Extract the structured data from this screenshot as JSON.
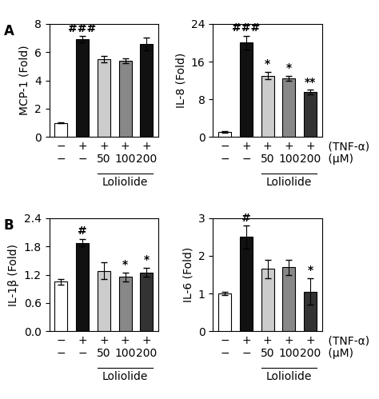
{
  "chart_data": [
    {
      "type": "bar",
      "panel_label": "A",
      "ylabel": "MCP-1 (Fold)",
      "categories": [
        "−\n−",
        "+\n−",
        "+\n50",
        "+\n100",
        "+\n200"
      ],
      "row_labels": [],
      "group_label": {
        "text": "Loliolide",
        "from": 2,
        "to": 4
      },
      "values": [
        1.0,
        6.9,
        5.5,
        5.4,
        6.6
      ],
      "errors": [
        0.05,
        0.22,
        0.25,
        0.18,
        0.45
      ],
      "colors": [
        "#ffffff",
        "#111111",
        "#cccccc",
        "#888888",
        "#111111"
      ],
      "ylim": [
        0,
        8
      ],
      "yticks": [
        0,
        2,
        4,
        6,
        8
      ],
      "annotations": [
        {
          "index": 1,
          "text": "###"
        }
      ]
    },
    {
      "type": "bar",
      "ylabel": "IL-8 (Fold)",
      "categories": [
        "−\n−",
        "+\n−",
        "+\n50",
        "+\n100",
        "+\n200"
      ],
      "row_labels": [
        " (TNF-α)",
        " (μM)"
      ],
      "group_label": {
        "text": "Loliolide",
        "from": 2,
        "to": 4
      },
      "values": [
        1.0,
        20.0,
        13.0,
        12.5,
        9.5
      ],
      "errors": [
        0.2,
        1.5,
        0.8,
        0.5,
        0.5
      ],
      "colors": [
        "#ffffff",
        "#111111",
        "#cccccc",
        "#888888",
        "#333333"
      ],
      "ylim": [
        0,
        24
      ],
      "yticks": [
        0,
        8,
        16,
        24
      ],
      "annotations": [
        {
          "index": 1,
          "text": "###"
        },
        {
          "index": 2,
          "text": "*"
        },
        {
          "index": 3,
          "text": "*"
        },
        {
          "index": 4,
          "text": "**"
        }
      ]
    },
    {
      "type": "bar",
      "panel_label": "B",
      "ylabel": "IL-1β (Fold)",
      "categories": [
        "−\n−",
        "+\n−",
        "+\n50",
        "+\n100",
        "+\n200"
      ],
      "row_labels": [],
      "group_label": {
        "text": "Loliolide",
        "from": 2,
        "to": 4
      },
      "values": [
        1.05,
        1.88,
        1.28,
        1.15,
        1.25
      ],
      "errors": [
        0.06,
        0.08,
        0.18,
        0.09,
        0.1
      ],
      "colors": [
        "#ffffff",
        "#111111",
        "#cccccc",
        "#888888",
        "#333333"
      ],
      "ylim": [
        0.0,
        2.4
      ],
      "yticks": [
        0.0,
        0.6,
        1.2,
        1.8,
        2.4
      ],
      "annotations": [
        {
          "index": 1,
          "text": "#"
        },
        {
          "index": 3,
          "text": "*"
        },
        {
          "index": 4,
          "text": "*"
        }
      ]
    },
    {
      "type": "bar",
      "ylabel": "IL-6 (Fold)",
      "categories": [
        "−\n−",
        "+\n−",
        "+\n50",
        "+\n100",
        "+\n200"
      ],
      "row_labels": [
        " (TNF-α)",
        " (μM)"
      ],
      "group_label": {
        "text": "Loliolide",
        "from": 2,
        "to": 4
      },
      "values": [
        1.0,
        2.5,
        1.65,
        1.7,
        1.05
      ],
      "errors": [
        0.05,
        0.3,
        0.25,
        0.2,
        0.35
      ],
      "colors": [
        "#ffffff",
        "#111111",
        "#cccccc",
        "#888888",
        "#333333"
      ],
      "ylim": [
        0,
        3
      ],
      "yticks": [
        0,
        1,
        2,
        3
      ],
      "annotations": [
        {
          "index": 1,
          "text": "#"
        },
        {
          "index": 4,
          "text": "*"
        }
      ]
    }
  ]
}
